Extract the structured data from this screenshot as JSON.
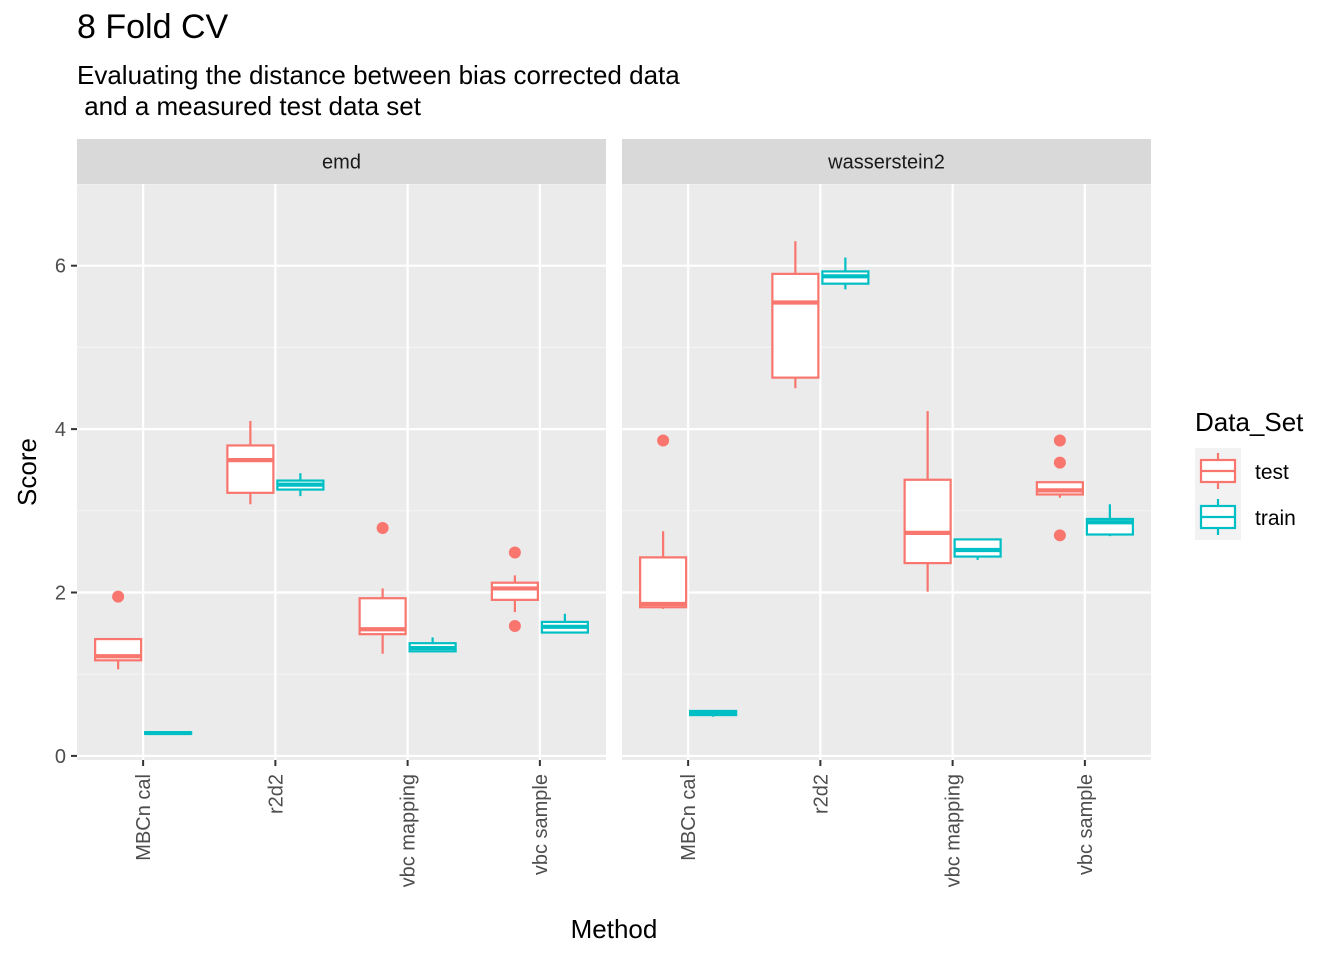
{
  "chart_data": {
    "type": "box",
    "title": "8 Fold CV",
    "subtitle": "Evaluating the distance between bias corrected data\n and a measured test data set",
    "xlabel": "Method",
    "ylabel": "Score",
    "ylim": [
      -0.05,
      7.0
    ],
    "yticks": [
      0,
      2,
      4,
      6
    ],
    "facets": [
      "emd",
      "wasserstein2"
    ],
    "categories": [
      "MBCn cal",
      "r2d2",
      "vbc mapping",
      "vbc sample"
    ],
    "legend": {
      "title": "Data_Set",
      "position": "right",
      "entries": [
        {
          "name": "test",
          "color": "#F8766D"
        },
        {
          "name": "train",
          "color": "#00BFC4"
        }
      ]
    },
    "series": [
      {
        "name": "test",
        "color": "#F8766D",
        "boxes": {
          "emd": [
            {
              "category": "MBCn cal",
              "min": 1.06,
              "q1": 1.17,
              "median": 1.22,
              "q3": 1.43,
              "max": 1.43,
              "outliers": [
                1.95
              ]
            },
            {
              "category": "r2d2",
              "min": 3.08,
              "q1": 3.22,
              "median": 3.62,
              "q3": 3.8,
              "max": 4.1,
              "outliers": []
            },
            {
              "category": "vbc mapping",
              "min": 1.25,
              "q1": 1.49,
              "median": 1.55,
              "q3": 1.93,
              "max": 2.05,
              "outliers": [
                2.79
              ]
            },
            {
              "category": "vbc sample",
              "min": 1.76,
              "q1": 1.91,
              "median": 2.05,
              "q3": 2.12,
              "max": 2.21,
              "outliers": [
                2.49,
                1.59
              ]
            }
          ],
          "wasserstein2": [
            {
              "category": "MBCn cal",
              "min": 1.8,
              "q1": 1.82,
              "median": 1.86,
              "q3": 2.43,
              "max": 2.75,
              "outliers": [
                3.86
              ]
            },
            {
              "category": "r2d2",
              "min": 4.5,
              "q1": 4.63,
              "median": 5.55,
              "q3": 5.9,
              "max": 6.3,
              "outliers": []
            },
            {
              "category": "vbc mapping",
              "min": 2.01,
              "q1": 2.36,
              "median": 2.73,
              "q3": 3.38,
              "max": 4.22,
              "outliers": []
            },
            {
              "category": "vbc sample",
              "min": 3.16,
              "q1": 3.2,
              "median": 3.25,
              "q3": 3.35,
              "max": 3.35,
              "outliers": [
                3.86,
                3.59,
                2.7
              ]
            }
          ]
        }
      },
      {
        "name": "train",
        "color": "#00BFC4",
        "boxes": {
          "emd": [
            {
              "category": "MBCn cal",
              "min": 0.27,
              "q1": 0.27,
              "median": 0.28,
              "q3": 0.29,
              "max": 0.3,
              "outliers": []
            },
            {
              "category": "r2d2",
              "min": 3.18,
              "q1": 3.26,
              "median": 3.32,
              "q3": 3.37,
              "max": 3.46,
              "outliers": []
            },
            {
              "category": "vbc mapping",
              "min": 1.27,
              "q1": 1.28,
              "median": 1.32,
              "q3": 1.38,
              "max": 1.45,
              "outliers": []
            },
            {
              "category": "vbc sample",
              "min": 1.5,
              "q1": 1.51,
              "median": 1.58,
              "q3": 1.64,
              "max": 1.74,
              "outliers": []
            }
          ],
          "wasserstein2": [
            {
              "category": "MBCn cal",
              "min": 0.48,
              "q1": 0.5,
              "median": 0.53,
              "q3": 0.55,
              "max": 0.55,
              "outliers": []
            },
            {
              "category": "r2d2",
              "min": 5.71,
              "q1": 5.78,
              "median": 5.87,
              "q3": 5.93,
              "max": 6.1,
              "outliers": []
            },
            {
              "category": "vbc mapping",
              "min": 2.4,
              "q1": 2.44,
              "median": 2.52,
              "q3": 2.65,
              "max": 2.66,
              "outliers": []
            },
            {
              "category": "vbc sample",
              "min": 2.69,
              "q1": 2.71,
              "median": 2.86,
              "q3": 2.9,
              "max": 3.08,
              "outliers": []
            }
          ]
        }
      }
    ]
  }
}
